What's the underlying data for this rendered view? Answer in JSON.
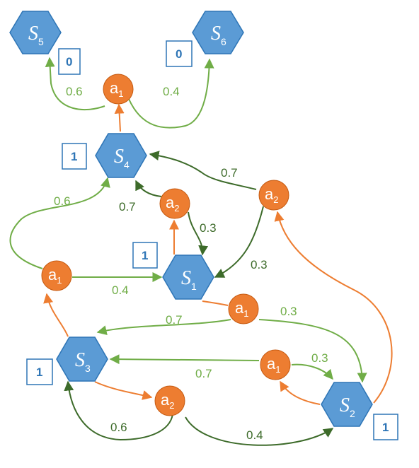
{
  "colors": {
    "state_fill": "#5b9bd5",
    "state_stroke": "#2e75b6",
    "action_fill": "#ed7d31",
    "action_stroke": "#c55a11",
    "edge_light_green": "#70ad47",
    "edge_dark_green": "#3d6b2a",
    "edge_orange": "#ed7d31",
    "reward_border": "#2e75b6"
  },
  "states": [
    {
      "id": "S5",
      "letter": "S",
      "sub": "5"
    },
    {
      "id": "S6",
      "letter": "S",
      "sub": "6"
    },
    {
      "id": "S4",
      "letter": "S",
      "sub": "4"
    },
    {
      "id": "S1",
      "letter": "S",
      "sub": "1"
    },
    {
      "id": "S3",
      "letter": "S",
      "sub": "3"
    },
    {
      "id": "S2",
      "letter": "S",
      "sub": "2"
    }
  ],
  "actions": [
    {
      "id": "S4a1",
      "letter": "a",
      "sub": "1"
    },
    {
      "id": "S1a2",
      "letter": "a",
      "sub": "2"
    },
    {
      "id": "S2a2",
      "letter": "a",
      "sub": "2"
    },
    {
      "id": "S3a1",
      "letter": "a",
      "sub": "1"
    },
    {
      "id": "S1a1",
      "letter": "a",
      "sub": "1"
    },
    {
      "id": "S2a1",
      "letter": "a",
      "sub": "1"
    },
    {
      "id": "S3a2",
      "letter": "a",
      "sub": "2"
    }
  ],
  "rewards": [
    {
      "id": "S5",
      "value": "0"
    },
    {
      "id": "S6",
      "value": "0"
    },
    {
      "id": "S4",
      "value": "1"
    },
    {
      "id": "S1",
      "value": "1"
    },
    {
      "id": "S3",
      "value": "1"
    },
    {
      "id": "S2",
      "value": "1"
    }
  ],
  "probabilities": [
    "0.6",
    "0.4",
    "0.7",
    "0.6",
    "0.7",
    "0.3",
    "0.3",
    "0.4",
    "0.7",
    "0.3",
    "0.3",
    "0.7",
    "0.6",
    "0.4"
  ]
}
